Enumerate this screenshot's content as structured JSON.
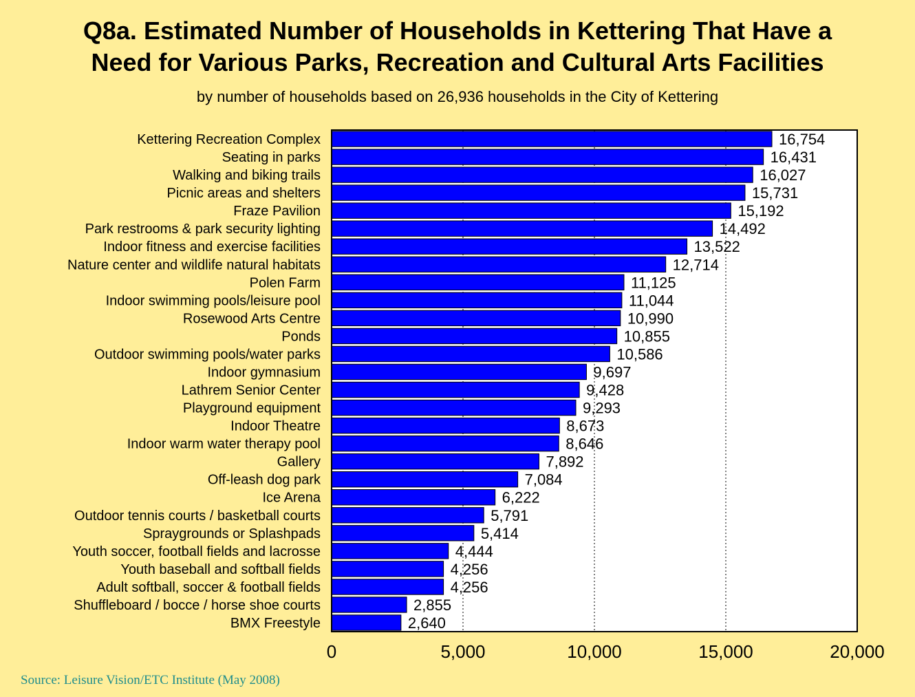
{
  "title_line1": "Q8a. Estimated Number of Households in Kettering That Have a",
  "title_line2": "Need for Various Parks, Recreation and Cultural Arts Facilities",
  "subtitle": "by number of households based on 26,936 households in the City of Kettering",
  "source": "Source:  Leisure Vision/ETC Institute (May 2008)",
  "colors": {
    "background": "#FFEE99",
    "bar": "#0000FF",
    "plot_area": "#FFFFFF",
    "source_text": "#1E8C8C"
  },
  "chart_data": {
    "type": "bar",
    "orientation": "horizontal",
    "categories": [
      "Kettering Recreation Complex",
      "Seating in parks",
      "Walking and biking trails",
      "Picnic areas and shelters",
      "Fraze Pavilion",
      "Park restrooms & park security lighting",
      "Indoor fitness and exercise facilities",
      "Nature center and wildlife natural habitats",
      "Polen Farm",
      "Indoor swimming pools/leisure pool",
      "Rosewood Arts Centre",
      "Ponds",
      "Outdoor swimming pools/water parks",
      "Indoor gymnasium",
      "Lathrem Senior Center",
      "Playground equipment",
      "Indoor Theatre",
      "Indoor warm water therapy pool",
      "Gallery",
      "Off-leash dog park",
      "Ice Arena",
      "Outdoor tennis courts / basketball courts",
      "Spraygrounds or Splashpads",
      "Youth soccer, football fields and lacrosse",
      "Youth baseball and softball fields",
      "Adult softball, soccer & football fields",
      "Shuffleboard / bocce / horse shoe courts",
      "BMX Freestyle"
    ],
    "values": [
      16754,
      16431,
      16027,
      15731,
      15192,
      14492,
      13522,
      12714,
      11125,
      11044,
      10990,
      10855,
      10586,
      9697,
      9428,
      9293,
      8673,
      8646,
      7892,
      7084,
      6222,
      5791,
      5414,
      4444,
      4256,
      4256,
      2855,
      2640
    ],
    "value_labels": [
      "16,754",
      "16,431",
      "16,027",
      "15,731",
      "15,192",
      "14,492",
      "13,522",
      "12,714",
      "11,125",
      "11,044",
      "10,990",
      "10,855",
      "10,586",
      "9,697",
      "9,428",
      "9,293",
      "8,673",
      "8,646",
      "7,892",
      "7,084",
      "6,222",
      "5,791",
      "5,414",
      "4,444",
      "4,256",
      "4,256",
      "2,855",
      "2,640"
    ],
    "xlim": [
      0,
      20000
    ],
    "xticks": [
      0,
      5000,
      10000,
      15000,
      20000
    ],
    "xtick_labels": [
      "0",
      "5,000",
      "10,000",
      "15,000",
      "20,000"
    ],
    "grid": "vertical dotted",
    "legend": "none"
  }
}
